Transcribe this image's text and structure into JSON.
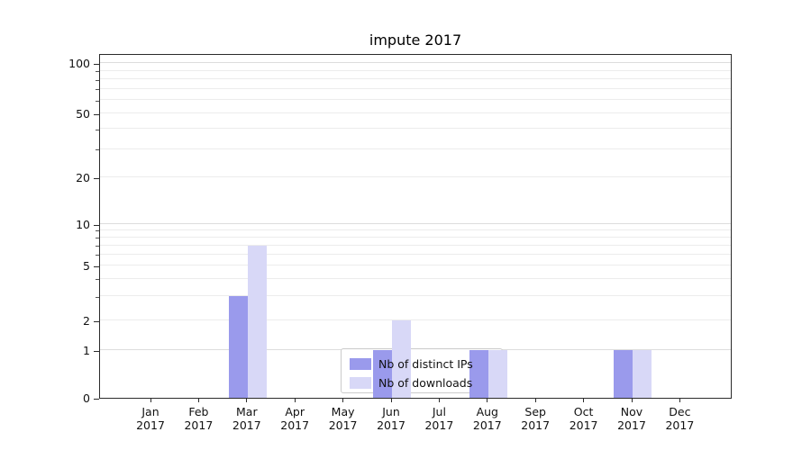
{
  "chart_data": {
    "type": "bar",
    "title": "impute 2017",
    "x_year": "2017",
    "months": [
      "Jan",
      "Feb",
      "Mar",
      "Apr",
      "May",
      "Jun",
      "Jul",
      "Aug",
      "Sep",
      "Oct",
      "Nov",
      "Dec"
    ],
    "categories": [
      "Jan 2017",
      "Feb 2017",
      "Mar 2017",
      "Apr 2017",
      "May 2017",
      "Jun 2017",
      "Jul 2017",
      "Aug 2017",
      "Sep 2017",
      "Oct 2017",
      "Nov 2017",
      "Dec 2017"
    ],
    "series": [
      {
        "name": "Nb of distinct IPs",
        "color": "#9a9aec",
        "values": [
          0,
          0,
          3,
          0,
          0,
          1,
          0,
          1,
          0,
          0,
          1,
          0
        ]
      },
      {
        "name": "Nb of downloads",
        "color": "#d8d8f7",
        "values": [
          0,
          0,
          7,
          0,
          0,
          2,
          0,
          1,
          0,
          0,
          1,
          0
        ]
      }
    ],
    "y_axis": {
      "tick_labels": [
        100,
        50,
        20,
        10,
        5,
        2,
        1,
        0
      ],
      "scale": "logarithmic above 1, linear between 0 and 1",
      "ylim": [
        0,
        115
      ],
      "grid": true
    },
    "minor_gridline_values": [
      2,
      3,
      4,
      5,
      6,
      7,
      8,
      9,
      20,
      30,
      40,
      50,
      60,
      70,
      80,
      90
    ],
    "major_gridline_values": [
      1,
      10,
      100
    ],
    "legend": {
      "position": "lower center",
      "items": [
        "Nb of distinct IPs",
        "Nb of downloads"
      ]
    }
  }
}
